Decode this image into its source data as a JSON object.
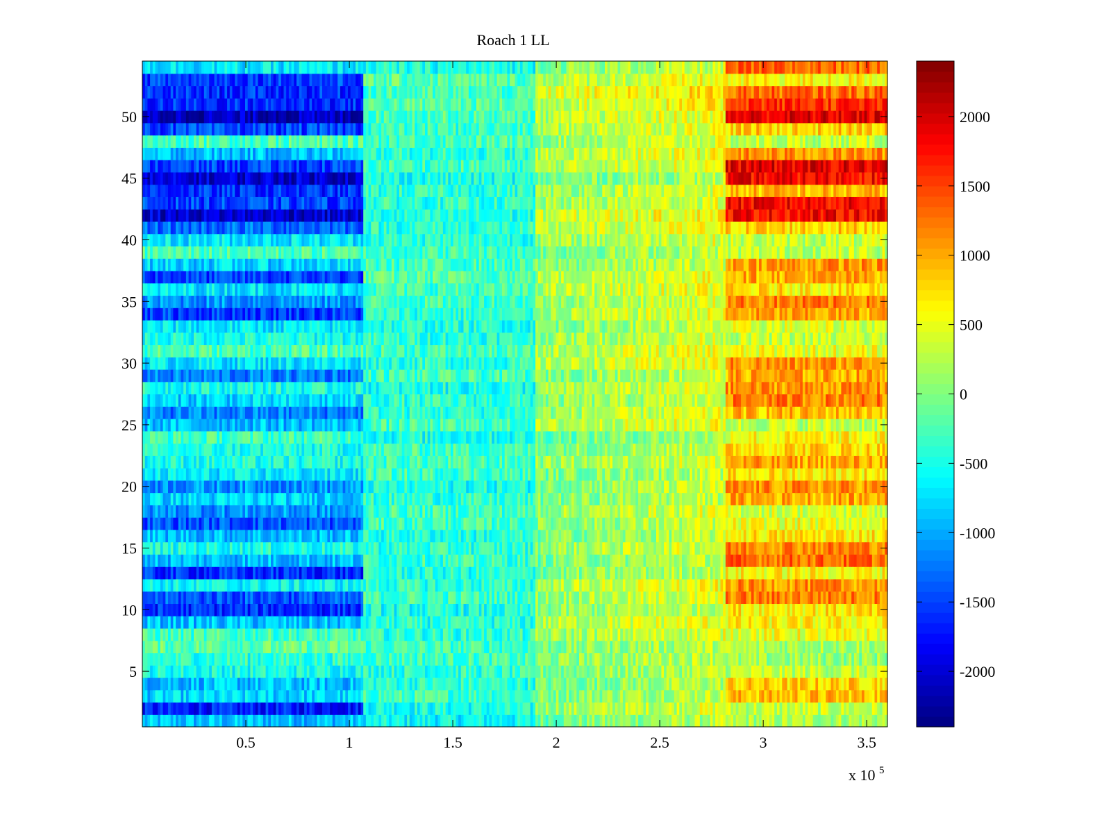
{
  "chart_data": {
    "type": "heatmap",
    "title": "Roach 1 LL",
    "xlabel": "",
    "ylabel": "",
    "x_exponent_label": {
      "base": "x 10",
      "exponent": "5"
    },
    "xlim": [
      0,
      3.6
    ],
    "ylim": [
      0.5,
      54.5
    ],
    "x_ticks": [
      0.5,
      1,
      1.5,
      2,
      2.5,
      3,
      3.5
    ],
    "x_tick_labels": [
      "0.5",
      "1",
      "1.5",
      "2",
      "2.5",
      "3",
      "3.5"
    ],
    "y_ticks": [
      5,
      10,
      15,
      20,
      25,
      30,
      35,
      40,
      45,
      50
    ],
    "y_tick_labels": [
      "5",
      "10",
      "15",
      "20",
      "25",
      "30",
      "35",
      "40",
      "45",
      "50"
    ],
    "rows": 54,
    "colormap": "jet",
    "colorbar": {
      "range": [
        -2400,
        2400
      ],
      "ticks": [
        -2000,
        -1500,
        -1000,
        -500,
        0,
        500,
        1000,
        1500,
        2000
      ],
      "tick_labels": [
        "-2000",
        "-1500",
        "-1000",
        "-500",
        "0",
        "500",
        "1000",
        "1500",
        "2000"
      ]
    },
    "segment_boundaries_x": [
      1.07,
      1.9,
      2.82
    ],
    "row_segment_means": {
      "note": "approximate mean value per row (index 1..54) in four x-segments",
      "seg1": [
        -900,
        -1700,
        -800,
        -900,
        -500,
        -400,
        -150,
        -300,
        -900,
        -1600,
        -1400,
        -600,
        -1600,
        -900,
        -500,
        -900,
        -1400,
        -1100,
        -800,
        -1100,
        -700,
        -500,
        -500,
        -300,
        -900,
        -1200,
        -800,
        -500,
        -1200,
        -700,
        -250,
        -500,
        -700,
        -1500,
        -1100,
        -700,
        -1500,
        -800,
        -250,
        -700,
        -1300,
        -2000,
        -1500,
        -1600,
        -2000,
        -1500,
        -900,
        -250,
        -1500,
        -2100,
        -1600,
        -1600,
        -1500,
        -700
      ],
      "seg2": [
        -600,
        -500,
        -300,
        -400,
        -400,
        -300,
        -300,
        -400,
        -450,
        -500,
        -300,
        -400,
        -450,
        -350,
        -400,
        -450,
        -300,
        -300,
        -400,
        -500,
        -300,
        -300,
        -300,
        -500,
        -300,
        -400,
        -400,
        -500,
        -300,
        -400,
        -300,
        -400,
        -450,
        -400,
        -300,
        -300,
        -200,
        -300,
        -300,
        -400,
        -400,
        -500,
        -400,
        -400,
        -500,
        -300,
        -400,
        -250,
        -350,
        -250,
        -200,
        -300,
        -200,
        -500
      ],
      "seg3": [
        -100,
        100,
        0,
        -100,
        -50,
        0,
        -50,
        100,
        200,
        0,
        100,
        200,
        -50,
        -50,
        100,
        -50,
        0,
        100,
        -50,
        0,
        -50,
        100,
        0,
        -150,
        200,
        100,
        0,
        100,
        0,
        200,
        200,
        100,
        0,
        150,
        100,
        200,
        200,
        0,
        -50,
        100,
        200,
        300,
        100,
        100,
        -100,
        200,
        200,
        100,
        200,
        200,
        300,
        400,
        200,
        0
      ],
      "seg4": [
        200,
        300,
        900,
        800,
        300,
        100,
        200,
        500,
        600,
        700,
        1200,
        1100,
        600,
        1300,
        1200,
        700,
        500,
        400,
        1000,
        1100,
        700,
        1000,
        800,
        600,
        300,
        900,
        1200,
        1100,
        1000,
        1100,
        500,
        300,
        400,
        1000,
        1200,
        700,
        1000,
        1100,
        300,
        300,
        800,
        1800,
        1800,
        900,
        1800,
        1900,
        1100,
        300,
        800,
        1900,
        1600,
        1300,
        600,
        1300
      ]
    }
  }
}
